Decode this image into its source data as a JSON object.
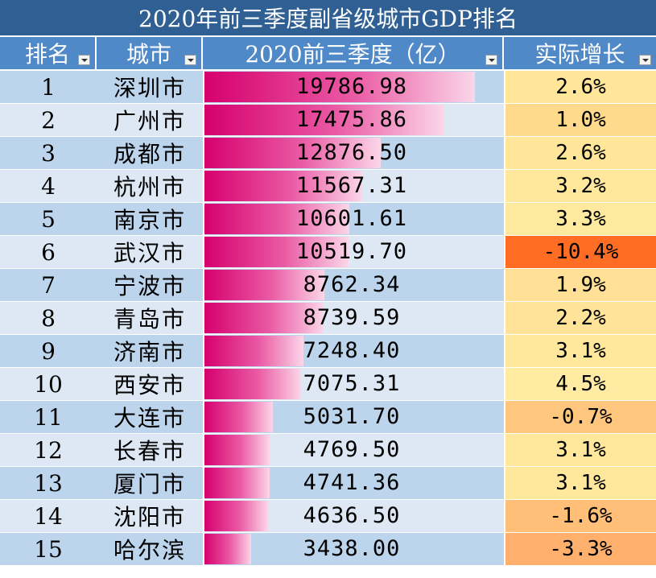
{
  "title": "2020年前三季度副省级城市GDP排名",
  "headers": {
    "rank": "排名",
    "city": "城市",
    "gdp": "2020前三季度（亿）",
    "growth": "实际增长"
  },
  "chart_data": {
    "type": "table",
    "title": "2020年前三季度副省级城市GDP排名",
    "columns": [
      "排名",
      "城市",
      "2020前三季度（亿）",
      "实际增长"
    ],
    "max_value": 19786.98,
    "rows": [
      {
        "rank": "1",
        "city": "深圳市",
        "gdp": 19786.98,
        "gdp_label": "19786.98",
        "growth": "2.6%",
        "growth_color": "#ffe699"
      },
      {
        "rank": "2",
        "city": "广州市",
        "gdp": 17475.86,
        "gdp_label": "17475.86",
        "growth": "1.0%",
        "growth_color": "#ffd98c"
      },
      {
        "rank": "3",
        "city": "成都市",
        "gdp": 12876.5,
        "gdp_label": "12876.50",
        "growth": "2.6%",
        "growth_color": "#ffe699"
      },
      {
        "rank": "4",
        "city": "杭州市",
        "gdp": 11567.31,
        "gdp_label": "11567.31",
        "growth": "3.2%",
        "growth_color": "#ffe89c"
      },
      {
        "rank": "5",
        "city": "南京市",
        "gdp": 10601.61,
        "gdp_label": "10601.61",
        "growth": "3.3%",
        "growth_color": "#ffe99e"
      },
      {
        "rank": "6",
        "city": "武汉市",
        "gdp": 10519.7,
        "gdp_label": "10519.70",
        "growth": "-10.4%",
        "growth_color": "#ff6c24"
      },
      {
        "rank": "7",
        "city": "宁波市",
        "gdp": 8762.34,
        "gdp_label": "8762.34",
        "growth": "1.9%",
        "growth_color": "#ffe096"
      },
      {
        "rank": "8",
        "city": "青岛市",
        "gdp": 8739.59,
        "gdp_label": "8739.59",
        "growth": "2.2%",
        "growth_color": "#ffe398"
      },
      {
        "rank": "9",
        "city": "济南市",
        "gdp": 7248.4,
        "gdp_label": "7248.40",
        "growth": "3.1%",
        "growth_color": "#ffe89c"
      },
      {
        "rank": "10",
        "city": "西安市",
        "gdp": 7075.31,
        "gdp_label": "7075.31",
        "growth": "4.5%",
        "growth_color": "#ffeba2"
      },
      {
        "rank": "11",
        "city": "大连市",
        "gdp": 5031.7,
        "gdp_label": "5031.70",
        "growth": "-0.7%",
        "growth_color": "#ffc77e"
      },
      {
        "rank": "12",
        "city": "长春市",
        "gdp": 4769.5,
        "gdp_label": "4769.50",
        "growth": "3.1%",
        "growth_color": "#ffe89c"
      },
      {
        "rank": "13",
        "city": "厦门市",
        "gdp": 4741.36,
        "gdp_label": "4741.36",
        "growth": "3.1%",
        "growth_color": "#ffe89c"
      },
      {
        "rank": "14",
        "city": "沈阳市",
        "gdp": 4636.5,
        "gdp_label": "4636.50",
        "growth": "-1.6%",
        "growth_color": "#ffbf78"
      },
      {
        "rank": "15",
        "city": "哈尔滨",
        "gdp": 3438.0,
        "gdp_label": "3438.00",
        "growth": "-3.3%",
        "growth_color": "#ffb06c"
      }
    ]
  }
}
